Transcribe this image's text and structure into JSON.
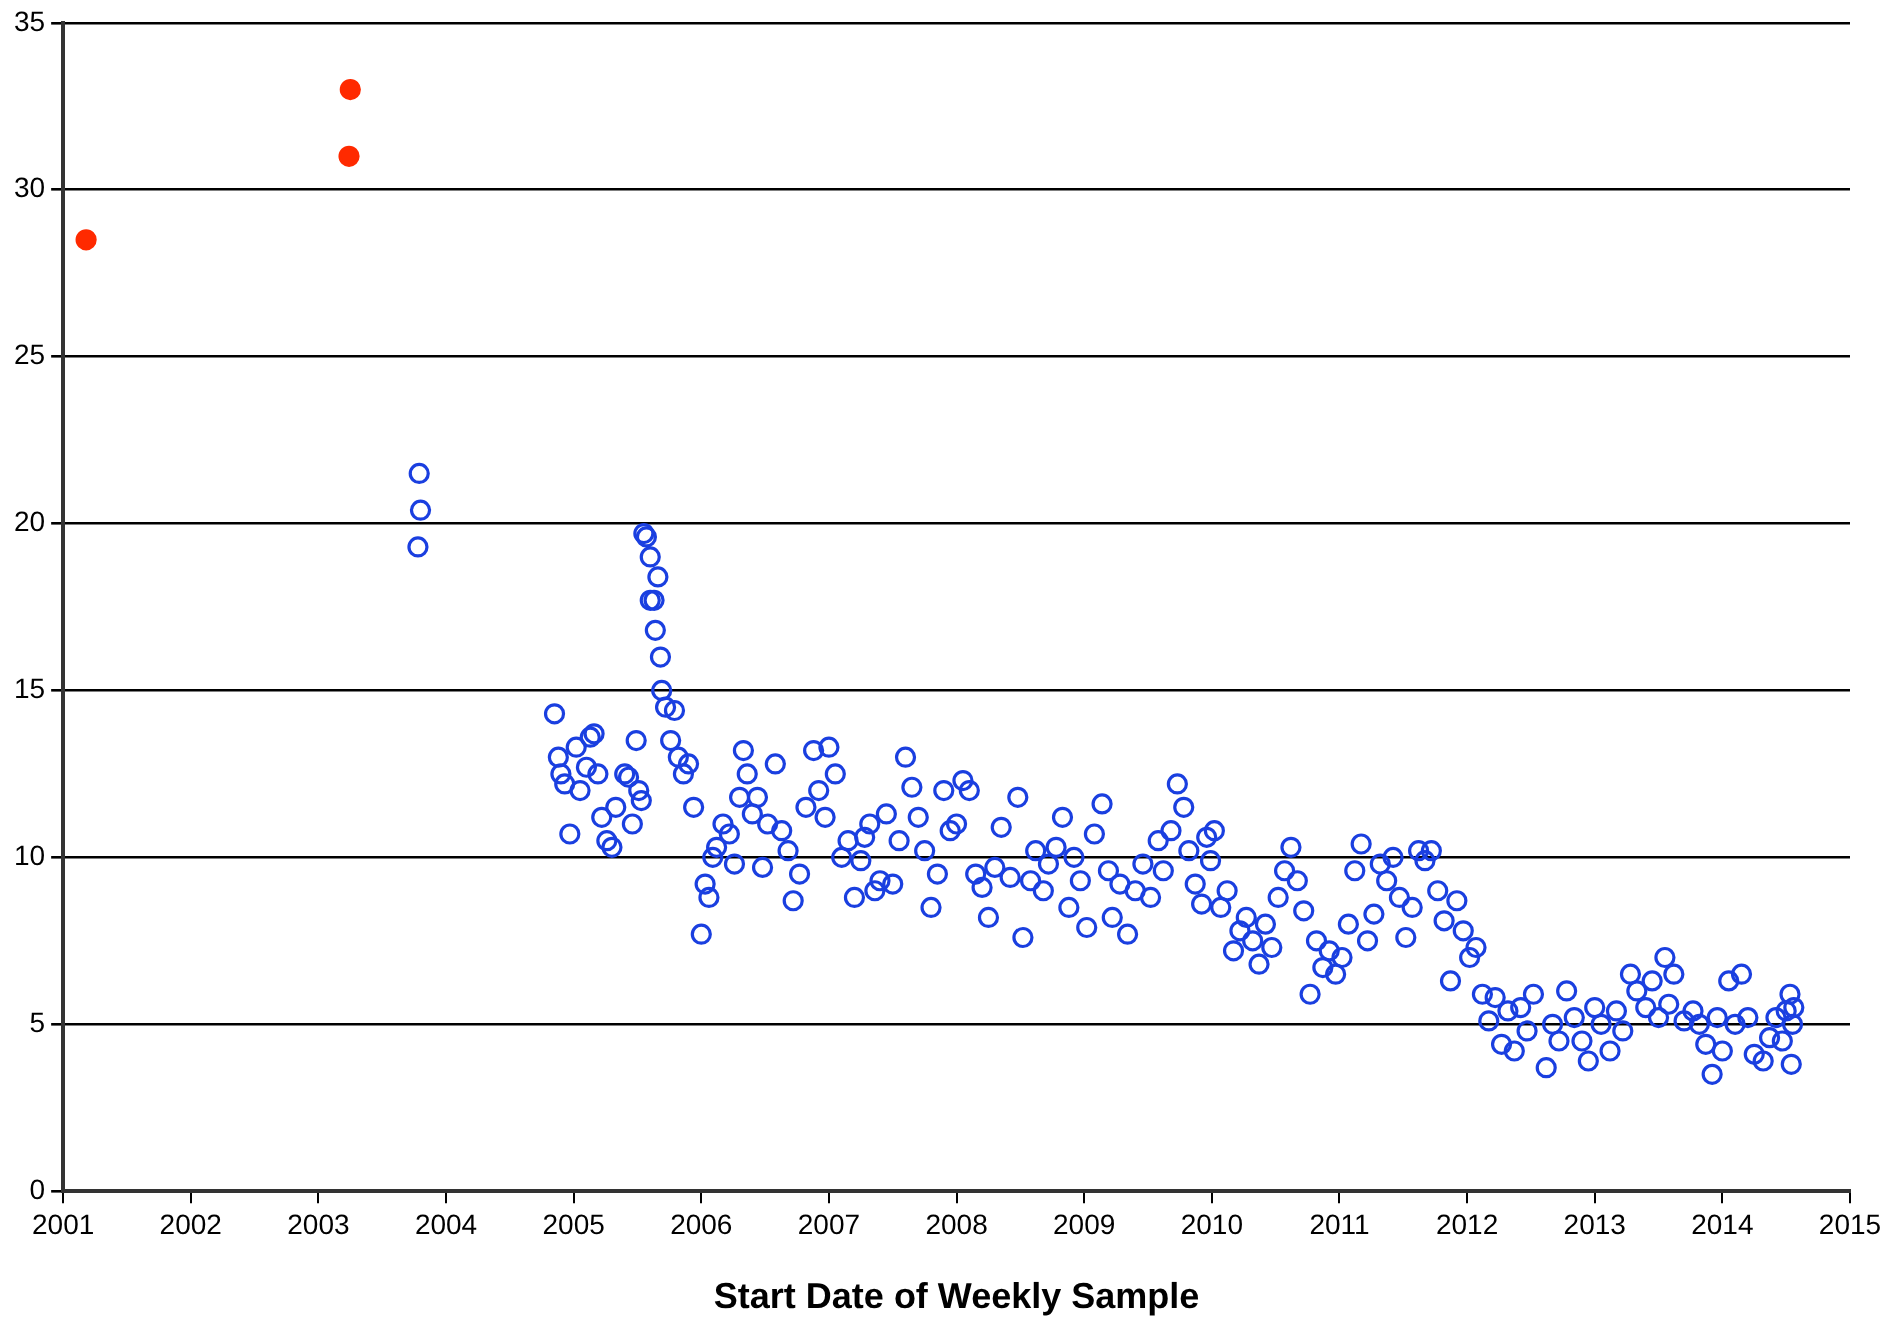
{
  "chart_data": {
    "type": "scatter",
    "xlabel": "Start Date of Weekly Sample",
    "xlim": [
      2001,
      2015
    ],
    "xticks": [
      2001,
      2002,
      2003,
      2004,
      2005,
      2006,
      2007,
      2008,
      2009,
      2010,
      2011,
      2012,
      2013,
      2014,
      2015
    ],
    "ylim": [
      0,
      35
    ],
    "yticks": [
      0,
      5,
      10,
      15,
      20,
      25,
      30,
      35
    ],
    "grid": "y",
    "legend": false,
    "marker": "circle",
    "series": [
      {
        "color": "#ff2a00",
        "x": [
          2001.18,
          2003.25,
          2003.24
        ],
        "values": [
          28.5,
          33.0,
          31.0
        ]
      },
      {
        "color": "#1a3fe0",
        "x": [
          2003.79,
          2003.8,
          2003.78,
          2004.85,
          2004.88,
          2004.9,
          2004.93,
          2004.97,
          2005.02,
          2005.05,
          2005.1,
          2005.13,
          2005.16,
          2005.19,
          2005.22,
          2005.26,
          2005.3,
          2005.33,
          2005.4,
          2005.43,
          2005.46,
          2005.49,
          2005.51,
          2005.53,
          2005.55,
          2005.57,
          2005.6,
          2005.6,
          2005.63,
          2005.64,
          2005.66,
          2005.68,
          2005.69,
          2005.72,
          2005.76,
          2005.79,
          2005.82,
          2005.86,
          2005.9,
          2005.94,
          2006.0,
          2006.03,
          2006.06,
          2006.09,
          2006.12,
          2006.17,
          2006.22,
          2006.26,
          2006.3,
          2006.33,
          2006.36,
          2006.4,
          2006.44,
          2006.48,
          2006.52,
          2006.58,
          2006.63,
          2006.68,
          2006.72,
          2006.77,
          2006.82,
          2006.88,
          2006.92,
          2006.97,
          2007.0,
          2007.05,
          2007.1,
          2007.15,
          2007.2,
          2007.25,
          2007.28,
          2007.32,
          2007.36,
          2007.4,
          2007.45,
          2007.5,
          2007.55,
          2007.6,
          2007.65,
          2007.7,
          2007.75,
          2007.8,
          2007.85,
          2007.9,
          2007.95,
          2008.0,
          2008.05,
          2008.1,
          2008.15,
          2008.2,
          2008.25,
          2008.3,
          2008.35,
          2008.42,
          2008.48,
          2008.52,
          2008.58,
          2008.62,
          2008.68,
          2008.72,
          2008.78,
          2008.83,
          2008.88,
          2008.92,
          2008.97,
          2009.02,
          2009.08,
          2009.14,
          2009.19,
          2009.22,
          2009.28,
          2009.34,
          2009.4,
          2009.46,
          2009.52,
          2009.58,
          2009.62,
          2009.68,
          2009.73,
          2009.78,
          2009.82,
          2009.87,
          2009.92,
          2009.96,
          2009.99,
          2010.02,
          2010.07,
          2010.12,
          2010.17,
          2010.22,
          2010.27,
          2010.32,
          2010.37,
          2010.42,
          2010.47,
          2010.52,
          2010.57,
          2010.62,
          2010.67,
          2010.72,
          2010.77,
          2010.82,
          2010.87,
          2010.92,
          2010.97,
          2011.02,
          2011.07,
          2011.12,
          2011.17,
          2011.22,
          2011.27,
          2011.32,
          2011.37,
          2011.42,
          2011.47,
          2011.52,
          2011.57,
          2011.62,
          2011.67,
          2011.72,
          2011.77,
          2011.82,
          2011.87,
          2011.92,
          2011.97,
          2012.02,
          2012.07,
          2012.12,
          2012.17,
          2012.22,
          2012.27,
          2012.32,
          2012.37,
          2012.42,
          2012.47,
          2012.52,
          2012.62,
          2012.67,
          2012.72,
          2012.78,
          2012.84,
          2012.9,
          2012.95,
          2013.0,
          2013.05,
          2013.12,
          2013.17,
          2013.22,
          2013.28,
          2013.33,
          2013.4,
          2013.45,
          2013.5,
          2013.55,
          2013.58,
          2013.62,
          2013.7,
          2013.77,
          2013.82,
          2013.87,
          2013.92,
          2013.96,
          2014.0,
          2014.05,
          2014.1,
          2014.15,
          2014.2,
          2014.25,
          2014.32,
          2014.37,
          2014.42,
          2014.47,
          2014.5,
          2014.53,
          2014.54,
          2014.55,
          2014.56
        ],
        "values": [
          21.5,
          20.4,
          19.3,
          14.3,
          13.0,
          12.5,
          12.2,
          10.7,
          13.3,
          12.0,
          12.7,
          13.6,
          13.7,
          12.5,
          11.2,
          10.5,
          10.3,
          11.5,
          12.5,
          12.4,
          11.0,
          13.5,
          12.0,
          11.7,
          19.7,
          19.6,
          19.0,
          17.7,
          17.7,
          16.8,
          18.4,
          16.0,
          15.0,
          14.5,
          13.5,
          14.4,
          13.0,
          12.5,
          12.8,
          11.5,
          7.7,
          9.2,
          8.8,
          10.0,
          10.3,
          11.0,
          10.7,
          9.8,
          11.8,
          13.2,
          12.5,
          11.3,
          11.8,
          9.7,
          11.0,
          12.8,
          10.8,
          10.2,
          8.7,
          9.5,
          11.5,
          13.2,
          12.0,
          11.2,
          13.3,
          12.5,
          10.0,
          10.5,
          8.8,
          9.9,
          10.6,
          11.0,
          9.0,
          9.3,
          11.3,
          9.2,
          10.5,
          13.0,
          12.1,
          11.2,
          10.2,
          8.5,
          9.5,
          12.0,
          10.8,
          11.0,
          12.3,
          12.0,
          9.5,
          9.1,
          8.2,
          9.7,
          10.9,
          9.4,
          11.8,
          7.6,
          9.3,
          10.2,
          9.0,
          9.8,
          10.3,
          11.2,
          8.5,
          10.0,
          9.3,
          7.9,
          10.7,
          11.6,
          9.6,
          8.2,
          9.2,
          7.7,
          9.0,
          9.8,
          8.8,
          10.5,
          9.6,
          10.8,
          12.2,
          11.5,
          10.2,
          9.2,
          8.6,
          10.6,
          9.9,
          10.8,
          8.5,
          9.0,
          7.2,
          7.8,
          8.2,
          7.5,
          6.8,
          8.0,
          7.3,
          8.8,
          9.6,
          10.3,
          9.3,
          8.4,
          5.9,
          7.5,
          6.7,
          7.2,
          6.5,
          7.0,
          8.0,
          9.6,
          10.4,
          7.5,
          8.3,
          9.8,
          9.3,
          10.0,
          8.8,
          7.6,
          8.5,
          10.2,
          9.9,
          10.2,
          9.0,
          8.1,
          6.3,
          8.7,
          7.8,
          7.0,
          7.3,
          5.9,
          5.1,
          5.8,
          4.4,
          5.4,
          4.2,
          5.5,
          4.8,
          5.9,
          3.7,
          5.0,
          4.5,
          6.0,
          5.2,
          4.5,
          3.9,
          5.5,
          5.0,
          4.2,
          5.4,
          4.8,
          6.5,
          6.0,
          5.5,
          6.3,
          5.2,
          7.0,
          5.6,
          6.5,
          5.1,
          5.4,
          5.0,
          4.4,
          3.5,
          5.2,
          4.2,
          6.3,
          5.0,
          6.5,
          5.2,
          4.1,
          3.9,
          4.6,
          5.2,
          4.5,
          5.4,
          5.9,
          3.8,
          5.0,
          5.5
        ]
      }
    ]
  }
}
